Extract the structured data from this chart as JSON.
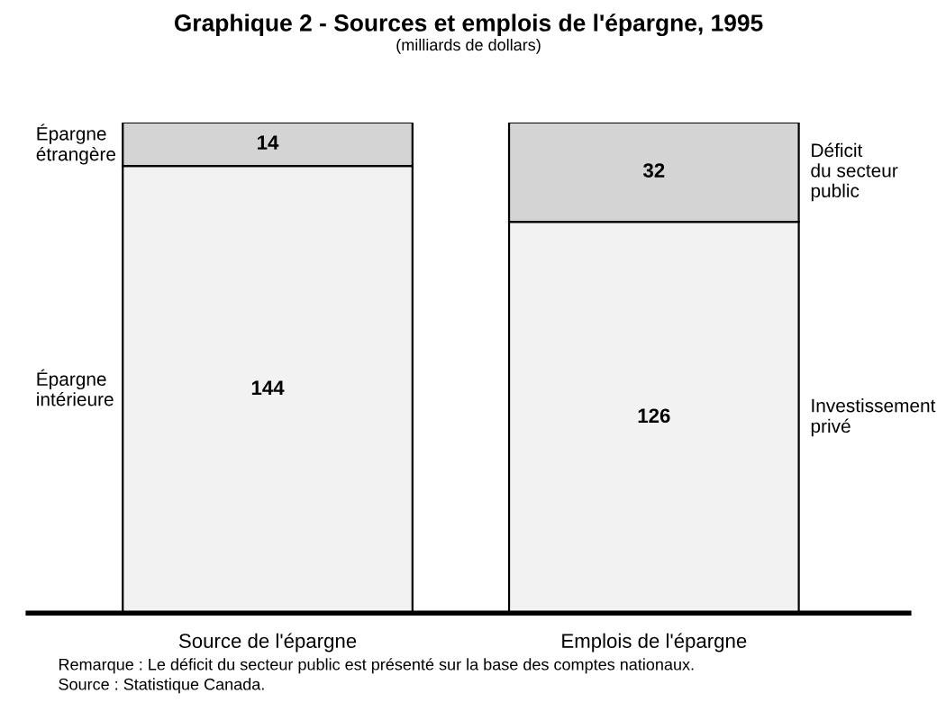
{
  "chart_data": {
    "type": "bar",
    "title": "Graphique 2 - Sources et emplois de l'épargne, 1995",
    "subtitle": "(milliards de dollars)",
    "categories": [
      "Source de l'épargne",
      "Emplois de l'épargne"
    ],
    "stacked": true,
    "data_labels": true,
    "legend": false,
    "grid": false,
    "series": [
      {
        "name": "Épargne\nintérieure",
        "color": "#f2f2f2",
        "values": [
          144,
          null
        ]
      },
      {
        "name": "Épargne\nétrangère",
        "color": "#d4d4d4",
        "values": [
          14,
          null
        ]
      },
      {
        "name": "Investissement\nprivé",
        "color": "#f2f2f2",
        "values": [
          null,
          126
        ]
      },
      {
        "name": "Déficit\ndu secteur\npublic",
        "color": "#d4d4d4",
        "values": [
          null,
          32
        ]
      }
    ],
    "annotations": [
      "Remarque : Le déficit du secteur public est présenté sur la base des comptes nationaux.",
      "Source : Statistique Canada."
    ]
  }
}
